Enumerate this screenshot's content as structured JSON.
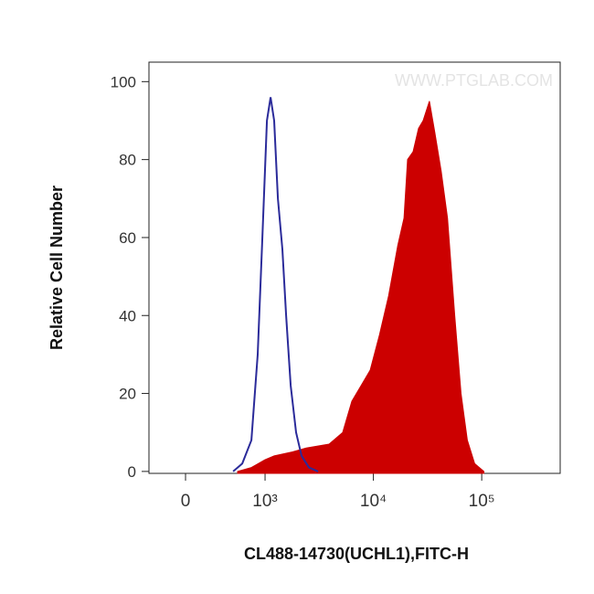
{
  "chart_data": {
    "type": "line",
    "x_label": "CL488-14730(UCHL1),FITC-H",
    "y_label": "Relative Cell Number",
    "watermark": "WWW.PTGLAB.COM",
    "xscale": "biexponential",
    "xlim": [
      -460,
      530000
    ],
    "xticks": [
      0,
      {
        "value": 1000,
        "label": "10³"
      },
      {
        "value": 10000,
        "label": "10⁴"
      },
      {
        "value": 100000,
        "label": "10⁵"
      }
    ],
    "ylim": [
      -0.5,
      105
    ],
    "yticks": [
      0,
      20,
      40,
      60,
      80,
      100
    ],
    "series": [
      {
        "color": "#cc0000",
        "filled": true,
        "x": [
          655,
          828,
          1000,
          1214,
          1792,
          2397,
          3896,
          5208,
          6329,
          7693,
          9350,
          11365,
          13816,
          16795,
          19163,
          20681,
          23246,
          26130,
          28771,
          32900,
          36924,
          42236,
          48330,
          56290,
          64390,
          73660,
          86000,
          104700
        ],
        "values": [
          0,
          1,
          3,
          4,
          5,
          6,
          7,
          10,
          18,
          22,
          26,
          35,
          45,
          58,
          65,
          80,
          82,
          88,
          90,
          95,
          87,
          77,
          65,
          40,
          20,
          8,
          2,
          0
        ]
      },
      {
        "color": "#2b2b9a",
        "filled": false,
        "x": [
          598,
          713,
          828,
          908,
          966,
          1040,
          1124,
          1214,
          1313,
          1446,
          1564,
          1723,
          1935,
          2174,
          2544,
          3087
        ],
        "values": [
          0,
          2,
          8,
          30,
          60,
          90,
          96,
          90,
          70,
          57,
          40,
          22,
          10,
          4,
          1,
          0
        ]
      }
    ]
  }
}
